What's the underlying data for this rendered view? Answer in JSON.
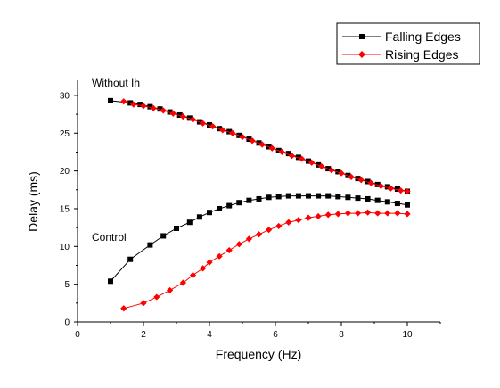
{
  "chart_data": {
    "type": "line",
    "title": "",
    "xlabel": "Frequency (Hz)",
    "ylabel": "Delay (ms)",
    "xlim": [
      0,
      11
    ],
    "ylim": [
      0,
      32
    ],
    "x_ticks": [
      0,
      2,
      4,
      6,
      8,
      10
    ],
    "y_ticks": [
      0,
      5,
      10,
      15,
      20,
      25,
      30
    ],
    "grid": false,
    "legend_position": "top-right",
    "legend": [
      {
        "name": "Falling Edges",
        "color": "#000000",
        "marker": "square"
      },
      {
        "name": "Rising Edges",
        "color": "#ff0000",
        "marker": "diamond"
      }
    ],
    "annotations": [
      {
        "text": "Without Ih",
        "near_series": "without_ih"
      },
      {
        "text": "Control",
        "near_series": "control"
      }
    ],
    "series": [
      {
        "id": "without_ih_falling",
        "name": "Falling Edges",
        "group": "Without Ih",
        "color": "#000000",
        "marker": "square",
        "x": [
          1.0,
          1.6,
          1.9,
          2.2,
          2.5,
          2.8,
          3.1,
          3.4,
          3.7,
          4.0,
          4.3,
          4.6,
          4.9,
          5.2,
          5.5,
          5.8,
          6.1,
          6.4,
          6.7,
          7.0,
          7.3,
          7.6,
          7.9,
          8.2,
          8.5,
          8.8,
          9.1,
          9.4,
          9.7,
          10.0
        ],
        "y": [
          29.3,
          29.0,
          28.8,
          28.5,
          28.2,
          27.8,
          27.4,
          27.0,
          26.5,
          26.1,
          25.6,
          25.2,
          24.7,
          24.2,
          23.7,
          23.2,
          22.7,
          22.3,
          21.8,
          21.3,
          20.8,
          20.3,
          19.9,
          19.4,
          19.0,
          18.6,
          18.2,
          17.9,
          17.6,
          17.3
        ]
      },
      {
        "id": "without_ih_rising",
        "name": "Rising Edges",
        "group": "Without Ih",
        "color": "#ff0000",
        "marker": "diamond",
        "x": [
          1.4,
          1.7,
          2.0,
          2.3,
          2.6,
          2.9,
          3.2,
          3.5,
          3.8,
          4.1,
          4.4,
          4.7,
          5.0,
          5.3,
          5.6,
          5.9,
          6.2,
          6.5,
          6.8,
          7.1,
          7.4,
          7.7,
          8.0,
          8.3,
          8.6,
          8.9,
          9.2,
          9.5,
          9.8,
          10.0
        ],
        "y": [
          29.2,
          28.8,
          28.6,
          28.3,
          28.0,
          27.6,
          27.2,
          26.8,
          26.3,
          25.9,
          25.4,
          25.0,
          24.5,
          24.0,
          23.5,
          23.0,
          22.5,
          22.0,
          21.6,
          21.1,
          20.6,
          20.1,
          19.7,
          19.2,
          18.8,
          18.4,
          18.0,
          17.7,
          17.4,
          17.3
        ]
      },
      {
        "id": "control_falling",
        "name": "Falling Edges",
        "group": "Control",
        "color": "#000000",
        "marker": "square",
        "x": [
          1.0,
          1.6,
          2.2,
          2.6,
          3.0,
          3.4,
          3.7,
          4.0,
          4.3,
          4.6,
          4.9,
          5.2,
          5.5,
          5.8,
          6.1,
          6.4,
          6.7,
          7.0,
          7.3,
          7.6,
          7.9,
          8.2,
          8.5,
          8.8,
          9.1,
          9.4,
          9.7,
          10.0
        ],
        "y": [
          5.4,
          8.3,
          10.2,
          11.4,
          12.4,
          13.2,
          13.9,
          14.5,
          15.0,
          15.4,
          15.8,
          16.1,
          16.3,
          16.5,
          16.6,
          16.7,
          16.7,
          16.7,
          16.7,
          16.7,
          16.6,
          16.5,
          16.4,
          16.3,
          16.1,
          15.9,
          15.7,
          15.5
        ]
      },
      {
        "id": "control_rising",
        "name": "Rising Edges",
        "group": "Control",
        "color": "#ff0000",
        "marker": "diamond",
        "x": [
          1.4,
          2.0,
          2.4,
          2.8,
          3.2,
          3.5,
          3.8,
          4.0,
          4.3,
          4.6,
          4.9,
          5.2,
          5.5,
          5.8,
          6.1,
          6.4,
          6.7,
          7.0,
          7.3,
          7.6,
          7.9,
          8.2,
          8.5,
          8.8,
          9.1,
          9.4,
          9.7,
          10.0
        ],
        "y": [
          1.8,
          2.5,
          3.3,
          4.2,
          5.2,
          6.2,
          7.1,
          7.9,
          8.7,
          9.5,
          10.3,
          11.0,
          11.6,
          12.2,
          12.7,
          13.2,
          13.5,
          13.8,
          14.0,
          14.2,
          14.3,
          14.4,
          14.4,
          14.5,
          14.4,
          14.4,
          14.4,
          14.3
        ]
      }
    ],
    "annotation_labels": {
      "without_ih": "Without Ih",
      "control": "Control"
    }
  }
}
